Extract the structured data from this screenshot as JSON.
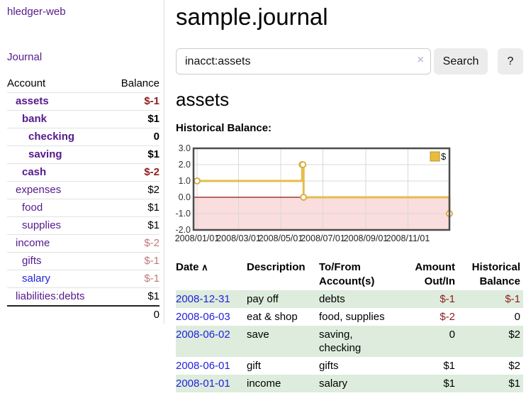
{
  "sidebar": {
    "brand": "hledger-web",
    "journal_link": "Journal",
    "columns": {
      "account": "Account",
      "balance": "Balance"
    },
    "accounts": [
      {
        "name": "assets",
        "indent": 1,
        "bold": true,
        "balance": "$-1",
        "balance_style": "neg-strong",
        "link_style": ""
      },
      {
        "name": "bank",
        "indent": 2,
        "bold": true,
        "balance": "$1",
        "balance_style": "",
        "link_style": ""
      },
      {
        "name": "checking",
        "indent": 3,
        "bold": true,
        "balance": "0",
        "balance_style": "",
        "link_style": ""
      },
      {
        "name": "saving",
        "indent": 3,
        "bold": true,
        "balance": "$1",
        "balance_style": "",
        "link_style": ""
      },
      {
        "name": "cash",
        "indent": 2,
        "bold": true,
        "balance": "$-2",
        "balance_style": "neg-strong",
        "link_style": ""
      },
      {
        "name": "expenses",
        "indent": 1,
        "bold": false,
        "balance": "$2",
        "balance_style": "",
        "link_style": ""
      },
      {
        "name": "food",
        "indent": 2,
        "bold": false,
        "balance": "$1",
        "balance_style": "",
        "link_style": ""
      },
      {
        "name": "supplies",
        "indent": 2,
        "bold": false,
        "balance": "$1",
        "balance_style": "",
        "link_style": ""
      },
      {
        "name": "income",
        "indent": 1,
        "bold": false,
        "balance": "$-2",
        "balance_style": "neg-faint",
        "link_style": ""
      },
      {
        "name": "gifts",
        "indent": 2,
        "bold": false,
        "balance": "$-1",
        "balance_style": "neg-faint",
        "link_style": ""
      },
      {
        "name": "salary",
        "indent": 2,
        "bold": false,
        "balance": "$-1",
        "balance_style": "neg-faint",
        "link_style": "blue"
      },
      {
        "name": "liabilities:debts",
        "indent": 1,
        "bold": false,
        "balance": "$1",
        "balance_style": "",
        "link_style": ""
      }
    ],
    "total": "0"
  },
  "header": {
    "title": "sample.journal"
  },
  "search": {
    "value": "inacct:assets",
    "clear_icon": "×",
    "search_button": "Search",
    "help_button": "?"
  },
  "account_page": {
    "title": "assets",
    "section_label": "Historical Balance:"
  },
  "chart_data": {
    "type": "line",
    "step": true,
    "title": "Historical Balance",
    "legend": [
      "$"
    ],
    "legend_position": "top-right",
    "x_range": [
      "2008-01-01",
      "2008-12-31"
    ],
    "ylim": [
      -2,
      3
    ],
    "yticks": [
      "3.0",
      "2.0",
      "1.0",
      "0.0",
      "-1.0",
      "-2.0"
    ],
    "xticks": [
      "2008/01/01",
      "2008/03/01",
      "2008/05/01",
      "2008/07/01",
      "2008/09/01",
      "2008/11/01"
    ],
    "series": [
      {
        "name": "$",
        "color": "#e5bd4c",
        "marker_color": "#d9ae45",
        "points": [
          [
            "2008-01-01",
            1
          ],
          [
            "2008-06-01",
            2
          ],
          [
            "2008-06-02",
            2
          ],
          [
            "2008-06-03",
            0
          ],
          [
            "2008-12-31",
            -1
          ]
        ]
      }
    ],
    "grid": true,
    "gridline_color": "#d9d9d9",
    "border_color": "#4d4d4d",
    "negative_region_color": "#fadddd",
    "zero_line_color": "#8c1717"
  },
  "register": {
    "columns": [
      {
        "label": "Date",
        "sort_icon": "∧",
        "align": "left"
      },
      {
        "label": "Description",
        "align": "left"
      },
      {
        "label": "To/From Account(s)",
        "align": "left"
      },
      {
        "label": "Amount Out/In",
        "align": "right"
      },
      {
        "label": "Historical Balance",
        "align": "right"
      }
    ],
    "rows": [
      {
        "date": "2008-12-31",
        "description": "pay off",
        "accounts": "debts",
        "amount": "$-1",
        "amount_negative": true,
        "balance": "$-1",
        "balance_negative": true
      },
      {
        "date": "2008-06-03",
        "description": "eat & shop",
        "accounts": "food, supplies",
        "amount": "$-2",
        "amount_negative": true,
        "balance": "0",
        "balance_negative": false
      },
      {
        "date": "2008-06-02",
        "description": "save",
        "accounts": "saving, checking",
        "amount": "0",
        "amount_negative": false,
        "balance": "$2",
        "balance_negative": false
      },
      {
        "date": "2008-06-01",
        "description": "gift",
        "accounts": "gifts",
        "amount": "$1",
        "amount_negative": false,
        "balance": "$2",
        "balance_negative": false
      },
      {
        "date": "2008-01-01",
        "description": "income",
        "accounts": "salary",
        "amount": "$1",
        "amount_negative": false,
        "balance": "$1",
        "balance_negative": false
      }
    ]
  }
}
